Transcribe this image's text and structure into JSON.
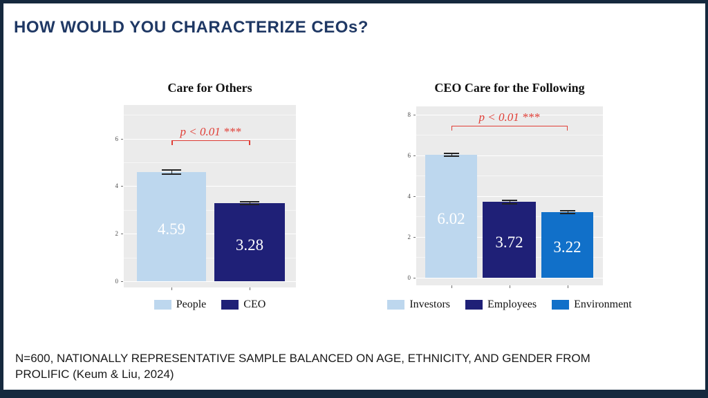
{
  "slide": {
    "title": "HOW WOULD YOU CHARACTERIZE CEOs?",
    "footnote_line1": "N=600, NATIONALLY REPRESENTATIVE SAMPLE BALANCED ON AGE, ETHNICITY, AND GENDER FROM",
    "footnote_line2": "PROLIFIC (Keum & Liu, 2024)",
    "colors": {
      "border": "#15293E",
      "title_text": "#1F3864",
      "panel_bg": "#EBEBEB",
      "significance_red": "#E03E36",
      "light_blue": "#BDD7EE",
      "dark_navy": "#1F2077",
      "medium_blue": "#1170C9"
    }
  },
  "chart_data": [
    {
      "type": "bar",
      "title": "Care for Others",
      "categories": [
        "People",
        "CEO"
      ],
      "values": [
        4.59,
        3.28
      ],
      "se": [
        0.12,
        0.09
      ],
      "value_labels": [
        "4.59",
        "3.28"
      ],
      "bar_colors": [
        "#BDD7EE",
        "#1F2077"
      ],
      "yticks": [
        0,
        2,
        4,
        6
      ],
      "yticks_minor": [
        1,
        3,
        5,
        7
      ],
      "ylim": [
        0,
        7.41
      ],
      "grid": true,
      "annotation": {
        "text": "p < 0.01 ***",
        "y": 5.93,
        "from_bar": 0,
        "to_bar": 1
      },
      "legend_position": "bottom",
      "legend": [
        {
          "label": "People",
          "color": "#BDD7EE"
        },
        {
          "label": "CEO",
          "color": "#1F2077"
        }
      ]
    },
    {
      "type": "bar",
      "title": "CEO Care for the Following",
      "categories": [
        "Investors",
        "Employees",
        "Environment"
      ],
      "values": [
        6.02,
        3.72,
        3.22
      ],
      "se": [
        0.1,
        0.12,
        0.1
      ],
      "value_labels": [
        "6.02",
        "3.72",
        "3.22"
      ],
      "bar_colors": [
        "#BDD7EE",
        "#1F2077",
        "#1170C9"
      ],
      "yticks": [
        0,
        2,
        4,
        6,
        8
      ],
      "yticks_minor": [
        1,
        3,
        5,
        7
      ],
      "ylim": [
        0,
        8.4
      ],
      "grid": true,
      "annotation": {
        "text": "p < 0.01 ***",
        "y": 7.46,
        "from_bar": 0,
        "to_bar": 2
      },
      "legend_position": "bottom",
      "legend": [
        {
          "label": "Investors",
          "color": "#BDD7EE"
        },
        {
          "label": "Employees",
          "color": "#1F2077"
        },
        {
          "label": "Environment",
          "color": "#1170C9"
        }
      ]
    }
  ]
}
